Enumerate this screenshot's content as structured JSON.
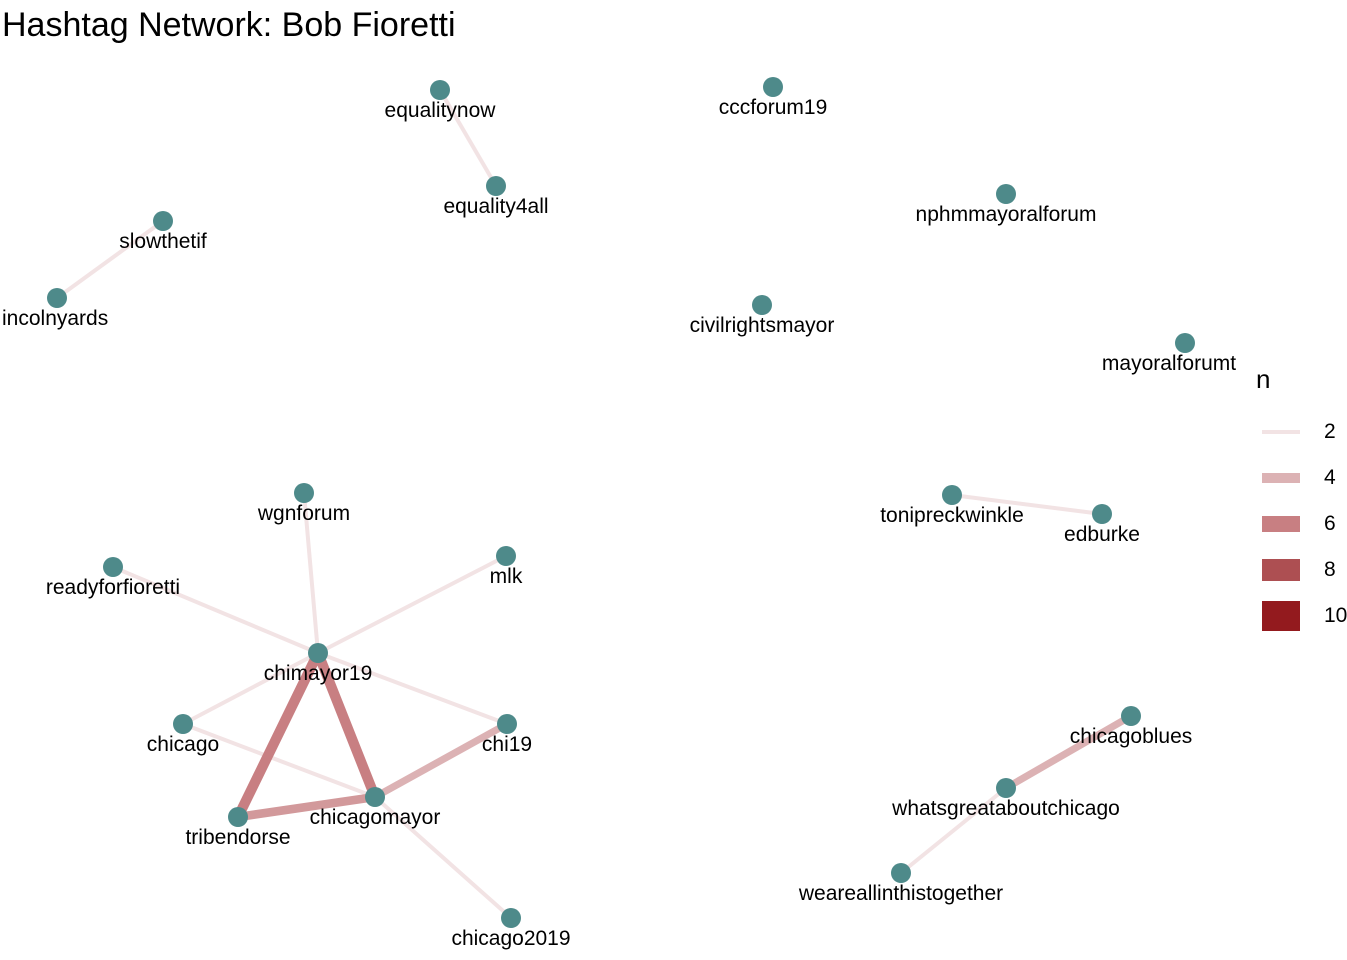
{
  "title": "Hashtag Network: Bob Fioretti",
  "colors": {
    "node": "#4e8a8a",
    "edge_scale": [
      "#f2e3e4",
      "#dcb2b4",
      "#c87f82",
      "#ad4f52",
      "#931a1e"
    ]
  },
  "legend": {
    "title": "n",
    "items": [
      {
        "label": "2",
        "value": 2
      },
      {
        "label": "4",
        "value": 4
      },
      {
        "label": "6",
        "value": 6
      },
      {
        "label": "8",
        "value": 8
      },
      {
        "label": "10",
        "value": 10
      }
    ]
  },
  "nodes": [
    {
      "id": "equalitynow",
      "label": "equalitynow"
    },
    {
      "id": "equality4all",
      "label": "equality4all"
    },
    {
      "id": "cccforum19",
      "label": "cccforum19"
    },
    {
      "id": "nphmmayoralforum",
      "label": "nphmmayoralforum"
    },
    {
      "id": "slowthetif",
      "label": "slowthetif"
    },
    {
      "id": "lincolnyards",
      "label": "incolnyards"
    },
    {
      "id": "civilrightsmayor",
      "label": "civilrightsmayor"
    },
    {
      "id": "mayoralforum",
      "label": "mayoralforumt"
    },
    {
      "id": "wgnforum",
      "label": "wgnforum"
    },
    {
      "id": "mlk",
      "label": "mlk"
    },
    {
      "id": "readyforfioretti",
      "label": "readyforfioretti"
    },
    {
      "id": "chimayor19",
      "label": "chimayor19"
    },
    {
      "id": "chicago",
      "label": "chicago"
    },
    {
      "id": "chi19",
      "label": "chi19"
    },
    {
      "id": "tribendorse",
      "label": "tribendorse"
    },
    {
      "id": "chicagomayor",
      "label": "chicagomayor"
    },
    {
      "id": "chicago2019",
      "label": "chicago2019"
    },
    {
      "id": "tonipreckwinkle",
      "label": "tonipreckwinkle"
    },
    {
      "id": "edburke",
      "label": "edburke"
    },
    {
      "id": "chicagoblues",
      "label": "chicagoblues"
    },
    {
      "id": "whatsgreataboutchicago",
      "label": "whatsgreataboutchicago"
    },
    {
      "id": "weareallinthistogether",
      "label": "weareallinthistogether"
    }
  ],
  "edges": [
    {
      "from": "equalitynow",
      "to": "equality4all",
      "n": 2
    },
    {
      "from": "slowthetif",
      "to": "lincolnyards",
      "n": 2
    },
    {
      "from": "wgnforum",
      "to": "chimayor19",
      "n": 2
    },
    {
      "from": "readyforfioretti",
      "to": "chimayor19",
      "n": 2
    },
    {
      "from": "mlk",
      "to": "chimayor19",
      "n": 2
    },
    {
      "from": "chicago",
      "to": "chimayor19",
      "n": 2
    },
    {
      "from": "chimayor19",
      "to": "chi19",
      "n": 2
    },
    {
      "from": "chicago",
      "to": "chicagomayor",
      "n": 2
    },
    {
      "from": "chicagomayor",
      "to": "chicago2019",
      "n": 2
    },
    {
      "from": "chicagomayor",
      "to": "chi19",
      "n": 4
    },
    {
      "from": "chimayor19",
      "to": "tribendorse",
      "n": 6
    },
    {
      "from": "chimayor19",
      "to": "chicagomayor",
      "n": 6
    },
    {
      "from": "tribendorse",
      "to": "chicagomayor",
      "n": 5
    },
    {
      "from": "tonipreckwinkle",
      "to": "edburke",
      "n": 2
    },
    {
      "from": "chicagoblues",
      "to": "whatsgreataboutchicago",
      "n": 4
    },
    {
      "from": "whatsgreataboutchicago",
      "to": "weareallinthistogether",
      "n": 2
    }
  ]
}
